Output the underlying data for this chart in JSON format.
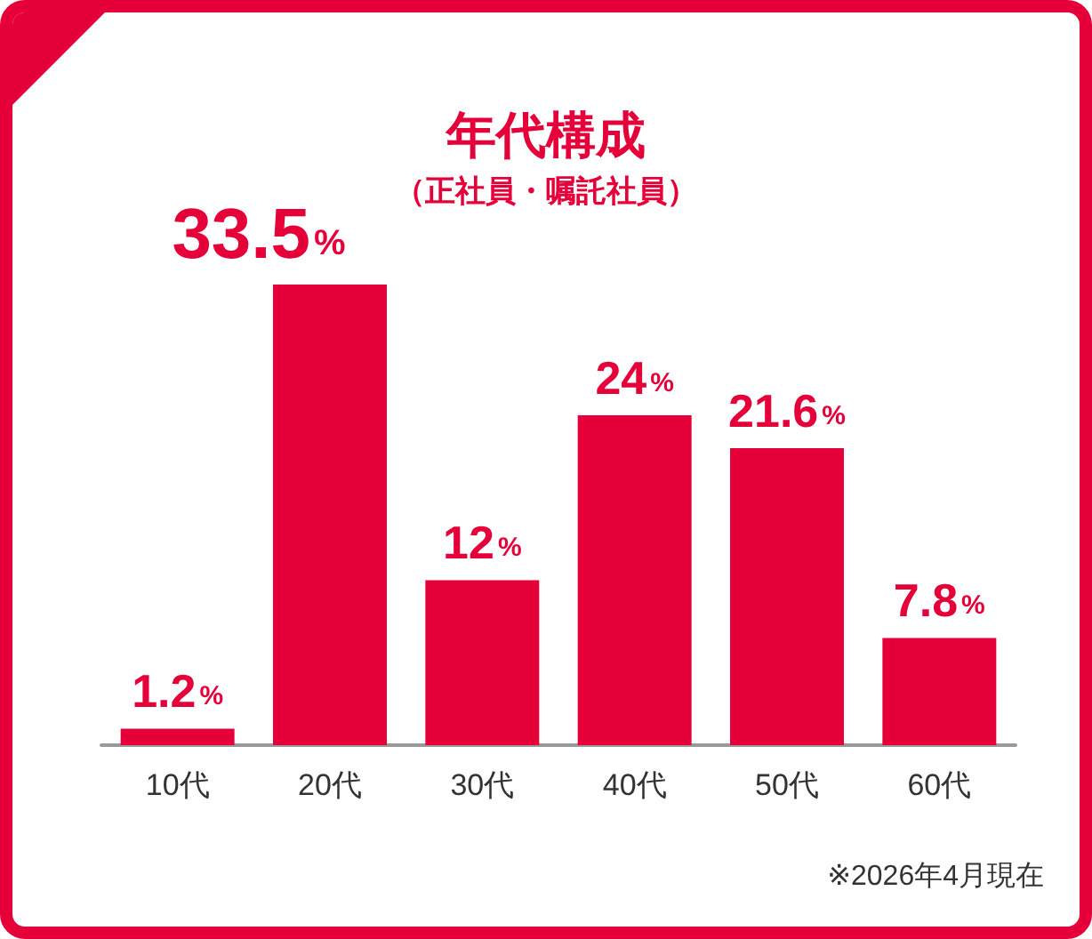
{
  "chart_data": {
    "type": "bar",
    "title": "年代構成",
    "subtitle": "（正社員・嘱託社員）",
    "categories": [
      "10代",
      "20代",
      "30代",
      "40代",
      "50代",
      "60代"
    ],
    "values": [
      1.2,
      33.5,
      12,
      24,
      21.6,
      7.8
    ],
    "value_labels": [
      "1.2%",
      "33.5%",
      "12%",
      "24%",
      "21.6%",
      "7.8%"
    ],
    "color": "#e60039",
    "annotations": [
      "※2026年4月現在"
    ]
  }
}
